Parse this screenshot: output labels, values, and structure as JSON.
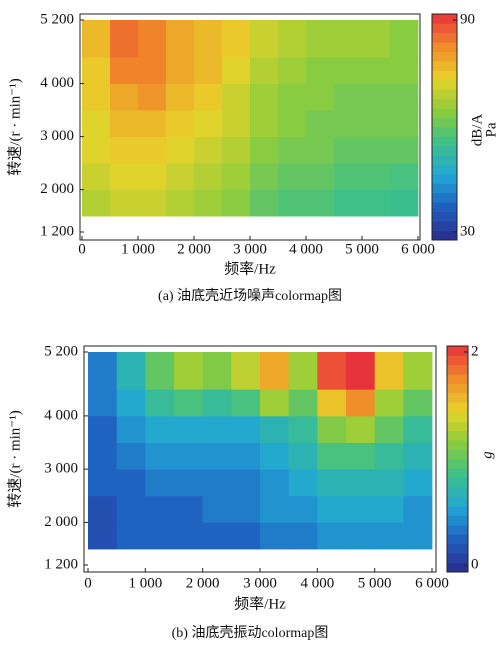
{
  "chart_data": [
    {
      "type": "heatmap",
      "title": "(a) 油底壳近场噪声colormap图",
      "xlabel": "频率/Hz",
      "ylabel": "转速/(r · min⁻¹)",
      "xlim": [
        0,
        6000
      ],
      "ylim": [
        1200,
        5200
      ],
      "xticks": [
        0,
        {
          "value": 1000,
          "label": "1 000"
        },
        {
          "value": 2000,
          "label": "2 000"
        },
        {
          "value": 3000,
          "label": "3 000"
        },
        {
          "value": 4000,
          "label": "4 000"
        },
        {
          "value": 5000,
          "label": "5 000"
        },
        {
          "value": 6000,
          "label": "6 000"
        }
      ],
      "yticks": [
        {
          "value": 1200,
          "label": "1 200"
        },
        {
          "value": 2000,
          "label": "2 000"
        },
        {
          "value": 3000,
          "label": "3 000"
        },
        {
          "value": 4000,
          "label": "4 000"
        },
        {
          "value": 5200,
          "label": "5 200"
        }
      ],
      "zlabel": [
        "dB/A",
        "Pa"
      ],
      "zlim": [
        30,
        90
      ],
      "zticks": [
        30,
        90
      ],
      "colormap": [
        "#2b2a8c",
        "#1f5fbf",
        "#21a6d6",
        "#3cc08a",
        "#8ccc3c",
        "#e8d42a",
        "#f08a2a",
        "#e8323c"
      ],
      "x_edges": [
        0,
        500,
        1000,
        1500,
        2000,
        2500,
        3000,
        3500,
        4000,
        4500,
        5000,
        5500,
        6000
      ],
      "y_edges": [
        1500,
        2000,
        2500,
        3000,
        3500,
        4000,
        4500,
        5200
      ],
      "z": [
        [
          68,
          70,
          70,
          68,
          66,
          64,
          60,
          58,
          58,
          56,
          56,
          55
        ],
        [
          70,
          72,
          72,
          70,
          68,
          66,
          62,
          60,
          60,
          58,
          58,
          57
        ],
        [
          72,
          74,
          74,
          72,
          70,
          68,
          64,
          62,
          62,
          60,
          60,
          60
        ],
        [
          72,
          76,
          76,
          74,
          72,
          70,
          66,
          64,
          62,
          62,
          62,
          62
        ],
        [
          74,
          78,
          80,
          76,
          74,
          70,
          66,
          64,
          64,
          62,
          62,
          62
        ],
        [
          74,
          82,
          82,
          78,
          76,
          72,
          68,
          66,
          64,
          64,
          64,
          64
        ],
        [
          76,
          84,
          82,
          78,
          76,
          74,
          70,
          68,
          66,
          66,
          66,
          64
        ]
      ]
    },
    {
      "type": "heatmap",
      "title": "(b) 油底壳振动colormap图",
      "xlabel": "频率/Hz",
      "ylabel": "转速/(r · min⁻¹)",
      "xlim": [
        0,
        6000
      ],
      "ylim": [
        1200,
        5200
      ],
      "xticks": [
        0,
        {
          "value": 1000,
          "label": "1 000"
        },
        {
          "value": 2000,
          "label": "2 000"
        },
        {
          "value": 3000,
          "label": "3 000"
        },
        {
          "value": 4000,
          "label": "4 000"
        },
        {
          "value": 5000,
          "label": "5 000"
        },
        {
          "value": 6000,
          "label": "6 000"
        }
      ],
      "yticks": [
        {
          "value": 1200,
          "label": "1 200"
        },
        {
          "value": 2000,
          "label": "2 000"
        },
        {
          "value": 3000,
          "label": "3 000"
        },
        {
          "value": 4000,
          "label": "4 000"
        },
        {
          "value": 5200,
          "label": "5 200"
        }
      ],
      "zlabel": [
        "g"
      ],
      "zlim": [
        0,
        2
      ],
      "zticks": [
        0,
        2
      ],
      "colormap": [
        "#2b2a8c",
        "#1f5fbf",
        "#21a6d6",
        "#3cc08a",
        "#8ccc3c",
        "#e8d42a",
        "#f08a2a",
        "#e8323c"
      ],
      "x_edges": [
        0,
        500,
        1000,
        1500,
        2000,
        2500,
        3000,
        3500,
        4000,
        4500,
        5000,
        5500,
        6000
      ],
      "y_edges": [
        1500,
        2000,
        2500,
        3000,
        3500,
        4000,
        4500,
        5200
      ],
      "z": [
        [
          0.2,
          0.3,
          0.3,
          0.3,
          0.3,
          0.3,
          0.4,
          0.4,
          0.5,
          0.5,
          0.5,
          0.5
        ],
        [
          0.2,
          0.3,
          0.3,
          0.3,
          0.4,
          0.4,
          0.5,
          0.5,
          0.6,
          0.6,
          0.6,
          0.5
        ],
        [
          0.3,
          0.3,
          0.4,
          0.4,
          0.4,
          0.4,
          0.5,
          0.6,
          0.7,
          0.7,
          0.7,
          0.6
        ],
        [
          0.3,
          0.4,
          0.5,
          0.5,
          0.5,
          0.5,
          0.6,
          0.7,
          0.9,
          0.9,
          0.8,
          0.7
        ],
        [
          0.3,
          0.5,
          0.6,
          0.6,
          0.6,
          0.6,
          0.7,
          0.8,
          1.1,
          1.2,
          1.0,
          0.8
        ],
        [
          0.4,
          0.6,
          0.8,
          0.9,
          0.8,
          0.9,
          1.2,
          1.0,
          1.5,
          1.7,
          1.2,
          1.0
        ],
        [
          0.4,
          0.7,
          1.0,
          1.2,
          1.1,
          1.3,
          1.6,
          1.2,
          1.9,
          2.0,
          1.5,
          1.2
        ]
      ]
    }
  ]
}
